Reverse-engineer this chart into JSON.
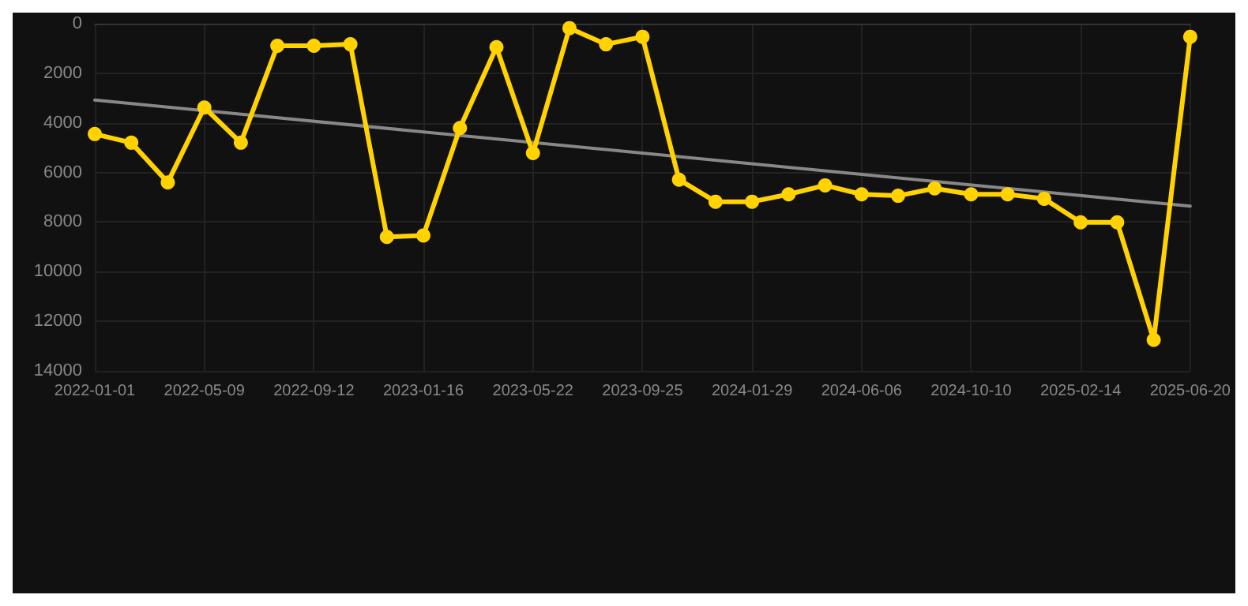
{
  "chart_data": {
    "type": "line",
    "categories": [
      "2022-01-01",
      null,
      null,
      "2022-05-09",
      null,
      null,
      "2022-09-12",
      null,
      null,
      "2023-01-16",
      null,
      null,
      "2023-05-22",
      null,
      null,
      "2023-09-25",
      null,
      null,
      "2024-01-29",
      null,
      null,
      "2024-06-06",
      null,
      null,
      "2024-10-10",
      null,
      null,
      "2025-02-14",
      null,
      null,
      "2025-06-20"
    ],
    "series": [
      {
        "color": "#ffd200",
        "values": [
          4450,
          4800,
          6400,
          3380,
          4800,
          890,
          890,
          830,
          8600,
          8540,
          4210,
          950,
          5220,
          180,
          830,
          530,
          6290,
          7180,
          7180,
          6880,
          6520,
          6880,
          6940,
          6640,
          6880,
          6880,
          7060,
          8010,
          8010,
          12750,
          530
        ]
      },
      {
        "type": "line",
        "color": "#888888",
        "values": [
          3080,
          null,
          null,
          null,
          null,
          null,
          null,
          null,
          null,
          null,
          null,
          null,
          null,
          null,
          null,
          null,
          null,
          null,
          null,
          null,
          null,
          null,
          null,
          null,
          null,
          null,
          null,
          null,
          null,
          null,
          7360
        ],
        "marker": "none"
      }
    ],
    "ylim": [
      14000,
      0
    ],
    "yticks": [
      0,
      2000,
      4000,
      6000,
      8000,
      10000,
      12000,
      14000
    ],
    "grid": true,
    "marker": "circle",
    "line_style": "solid"
  }
}
